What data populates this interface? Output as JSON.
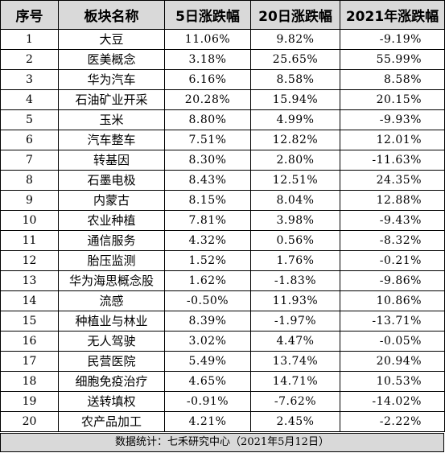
{
  "table": {
    "headers": [
      "序号",
      "板块名称",
      "5日涨跌幅",
      "20日涨跌幅",
      "2021年涨跌幅"
    ],
    "rows": [
      [
        "1",
        "大豆",
        "11.06%",
        "9.82%",
        "-9.19%"
      ],
      [
        "2",
        "医美概念",
        "3.18%",
        "25.65%",
        "55.99%"
      ],
      [
        "3",
        "华为汽车",
        "6.16%",
        "8.58%",
        "8.58%"
      ],
      [
        "4",
        "石油矿业开采",
        "20.28%",
        "15.94%",
        "20.15%"
      ],
      [
        "5",
        "玉米",
        "8.80%",
        "4.99%",
        "-9.93%"
      ],
      [
        "6",
        "汽车整车",
        "7.51%",
        "12.82%",
        "12.01%"
      ],
      [
        "7",
        "转基因",
        "8.30%",
        "2.80%",
        "-11.63%"
      ],
      [
        "8",
        "石墨电极",
        "8.43%",
        "12.51%",
        "24.35%"
      ],
      [
        "9",
        "内蒙古",
        "8.15%",
        "8.04%",
        "12.88%"
      ],
      [
        "10",
        "农业种植",
        "7.81%",
        "3.98%",
        "-9.43%"
      ],
      [
        "11",
        "通信服务",
        "4.32%",
        "0.56%",
        "-8.32%"
      ],
      [
        "12",
        "胎压监测",
        "1.52%",
        "1.76%",
        "-0.21%"
      ],
      [
        "13",
        "华为海思概念股",
        "1.62%",
        "-1.83%",
        "-9.86%"
      ],
      [
        "14",
        "流感",
        "-0.50%",
        "11.93%",
        "10.86%"
      ],
      [
        "15",
        "种植业与林业",
        "8.39%",
        "-1.97%",
        "-13.71%"
      ],
      [
        "16",
        "无人驾驶",
        "3.02%",
        "4.47%",
        "-0.05%"
      ],
      [
        "17",
        "民营医院",
        "5.49%",
        "13.74%",
        "20.94%"
      ],
      [
        "18",
        "细胞免疫治疗",
        "4.65%",
        "14.71%",
        "10.53%"
      ],
      [
        "19",
        "送转填权",
        "-0.91%",
        "-7.62%",
        "-14.02%"
      ],
      [
        "20",
        "农产品加工",
        "4.21%",
        "2.45%",
        "-2.22%"
      ]
    ]
  },
  "footer": {
    "source": "数据统计：七禾研究中心（2021年5月12日）"
  },
  "colors": {
    "header_bg": "#d9d9d9",
    "footer_bg": "#d9d9d9",
    "border": "#000000"
  }
}
